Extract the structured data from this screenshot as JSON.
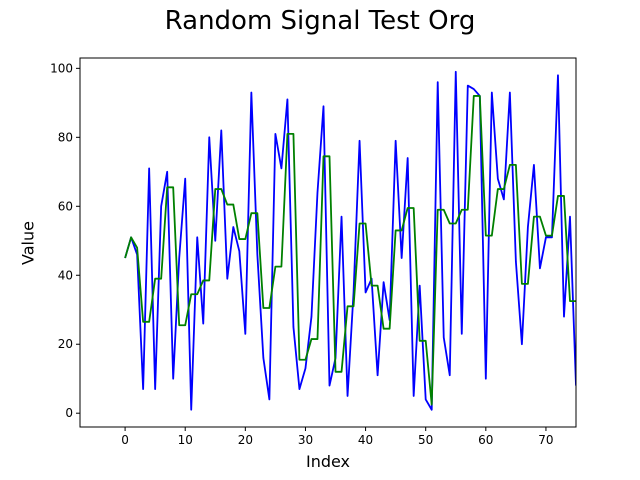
{
  "chart_data": {
    "type": "line",
    "title": "Random Signal Test Org",
    "xlabel": "Index",
    "ylabel": "Value",
    "xlim": [
      -7.5,
      75
    ],
    "ylim": [
      -4,
      103
    ],
    "xticks": [
      0,
      10,
      20,
      30,
      40,
      50,
      60,
      70
    ],
    "yticks": [
      0,
      20,
      40,
      60,
      80,
      100
    ],
    "grid": false,
    "series": [
      {
        "color": "#0000ff",
        "x": [
          0,
          1,
          2,
          3,
          4,
          5,
          6,
          7,
          8,
          9,
          10,
          11,
          12,
          13,
          14,
          15,
          16,
          17,
          18,
          19,
          20,
          21,
          22,
          23,
          24,
          25,
          26,
          27,
          28,
          29,
          30,
          31,
          32,
          33,
          34,
          35,
          36,
          37,
          38,
          39,
          40,
          41,
          42,
          43,
          44,
          45,
          46,
          47,
          48,
          49,
          50,
          51,
          52,
          53,
          54,
          55,
          56,
          57,
          58,
          59,
          60,
          61,
          62,
          63,
          64,
          65,
          66,
          67,
          68,
          69,
          70,
          71,
          72,
          73,
          74,
          75
        ],
        "values": [
          45,
          51,
          46,
          7,
          71,
          7,
          60,
          70,
          10,
          45,
          68,
          1,
          51,
          26,
          80,
          50,
          82,
          39,
          54,
          47,
          23,
          93,
          46,
          16,
          4,
          81,
          71,
          91,
          25,
          7,
          13,
          28,
          64,
          89,
          8,
          16,
          57,
          5,
          35,
          79,
          35,
          39,
          11,
          38,
          27,
          79,
          45,
          74,
          5,
          37,
          4,
          1,
          96,
          22,
          11,
          99,
          23,
          95,
          94,
          92,
          10,
          93,
          68,
          62,
          93,
          44,
          20,
          54,
          72,
          42,
          51,
          51,
          98,
          28,
          57,
          8
        ]
      },
      {
        "color": "#008000",
        "x": [
          0,
          1,
          2,
          3,
          4,
          5,
          6,
          7,
          8,
          9,
          10,
          11,
          12,
          13,
          14,
          15,
          16,
          17,
          18,
          19,
          20,
          21,
          22,
          23,
          24,
          25,
          26,
          27,
          28,
          29,
          30,
          31,
          32,
          33,
          34,
          35,
          36,
          37,
          38,
          39,
          40,
          41,
          42,
          43,
          44,
          45,
          46,
          47,
          48,
          49,
          50,
          51,
          52,
          53,
          54,
          55,
          56,
          57,
          58,
          59,
          60,
          61,
          62,
          63,
          64,
          65,
          66,
          67,
          68,
          69,
          70,
          71,
          72,
          73,
          74,
          75
        ],
        "values": [
          45,
          51,
          48,
          26.5,
          26.5,
          39,
          39,
          65.5,
          65.5,
          25.5,
          25.5,
          34.5,
          34.5,
          38.5,
          38.5,
          65,
          65,
          60.5,
          60.5,
          50.5,
          50.5,
          58,
          58,
          30.5,
          30.5,
          42.5,
          42.5,
          81,
          81,
          15.5,
          15.5,
          21.5,
          21.5,
          74.5,
          74.5,
          12,
          12,
          31,
          31,
          55,
          55,
          37,
          37,
          24.5,
          24.5,
          53,
          53,
          59.5,
          59.5,
          21,
          21,
          2.5,
          59,
          59,
          55,
          55,
          59,
          59,
          92,
          92,
          51.5,
          51.5,
          65,
          65,
          72,
          72,
          37.5,
          37.5,
          57,
          57,
          51.5,
          51.5,
          63,
          63,
          32.5,
          32.5
        ]
      }
    ]
  }
}
